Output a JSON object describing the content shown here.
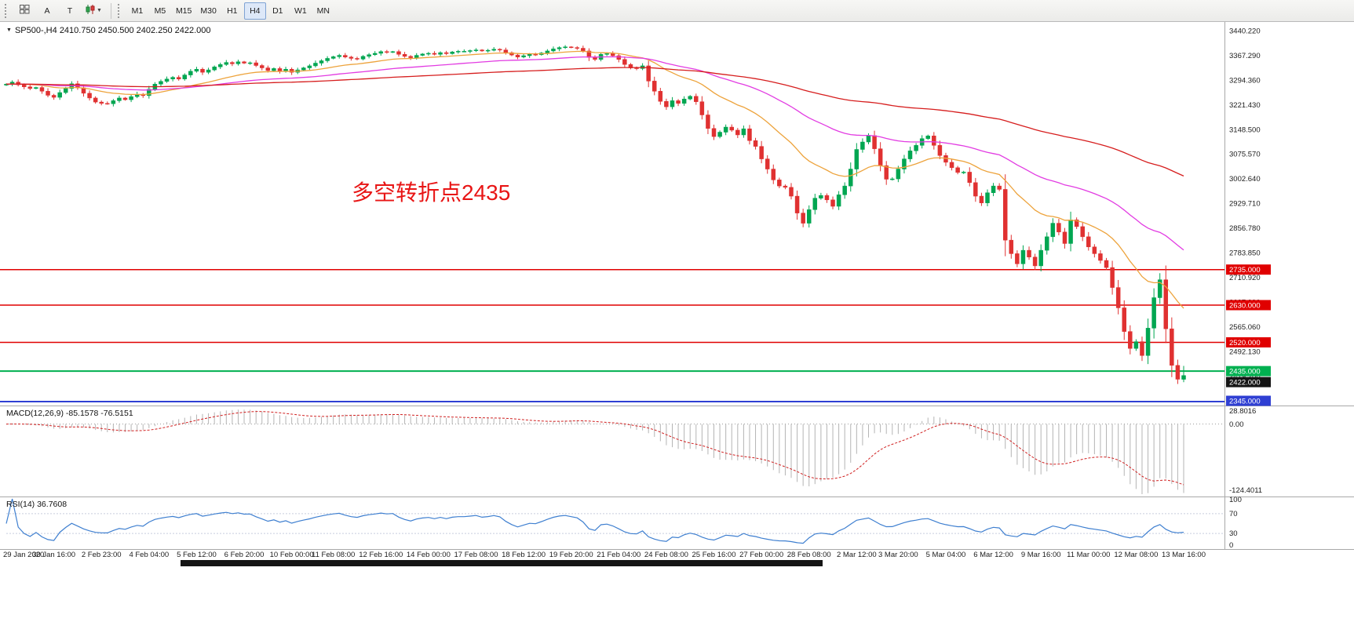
{
  "toolbar": {
    "left_buttons": [
      {
        "name": "chart-windows",
        "label": ""
      },
      {
        "name": "arrow-tool",
        "label": "A"
      },
      {
        "name": "text-tool",
        "label": "T"
      },
      {
        "name": "indicators",
        "label": ""
      }
    ],
    "timeframes": [
      {
        "label": "M1",
        "active": false
      },
      {
        "label": "M5",
        "active": false
      },
      {
        "label": "M15",
        "active": false
      },
      {
        "label": "M30",
        "active": false
      },
      {
        "label": "H1",
        "active": false
      },
      {
        "label": "H4",
        "active": true
      },
      {
        "label": "D1",
        "active": false
      },
      {
        "label": "W1",
        "active": false
      },
      {
        "label": "MN",
        "active": false
      }
    ]
  },
  "chart": {
    "title_symbol": "SP500-,H4",
    "title_ohlc": "2410.750 2450.500 2402.250 2422.000",
    "annotation": {
      "text": "多空转折点2435",
      "color": "#e81515"
    }
  },
  "indicators": {
    "macd": {
      "label": "MACD(12,26,9) -85.1578 -76.5151",
      "axis_labels": [
        "28.8016",
        "0.00",
        "-124.4011"
      ]
    },
    "rsi": {
      "label": "RSI(14) 36.7608",
      "axis_labels": [
        "100",
        "70",
        "30",
        "0"
      ]
    }
  },
  "chart_data": {
    "type": "candlestick",
    "symbol": "SP500-",
    "timeframe": "H4",
    "title": "SP500-,H4",
    "ylim": [
      2338,
      3462
    ],
    "y_axis_labels": [
      "3440.220",
      "3367.290",
      "3294.360",
      "3221.430",
      "3148.500",
      "3075.570",
      "3002.640",
      "2929.710",
      "2856.780",
      "2783.850",
      "2710.920",
      "2637.990",
      "2565.060",
      "2492.130",
      "2419.200",
      "2346.270"
    ],
    "x_axis_labels": [
      "29 Jan 2020",
      "30 Jan 16:00",
      "2 Feb 23:00",
      "4 Feb 04:00",
      "5 Feb 12:00",
      "6 Feb 20:00",
      "10 Feb 00:00",
      "11 Feb 08:00",
      "12 Feb 16:00",
      "14 Feb 00:00",
      "17 Feb 08:00",
      "18 Feb 12:00",
      "19 Feb 20:00",
      "21 Feb 04:00",
      "24 Feb 08:00",
      "25 Feb 16:00",
      "27 Feb 00:00",
      "28 Feb 08:00",
      "2 Mar 12:00",
      "3 Mar 20:00",
      "5 Mar 04:00",
      "6 Mar 12:00",
      "9 Mar 16:00",
      "11 Mar 00:00",
      "12 Mar 08:00",
      "13 Mar 16:00"
    ],
    "open_first": 3280,
    "closes": [
      3283,
      3289,
      3281,
      3275,
      3270,
      3273,
      3262,
      3250,
      3244,
      3258,
      3270,
      3284,
      3272,
      3256,
      3242,
      3230,
      3226,
      3225,
      3234,
      3242,
      3237,
      3246,
      3253,
      3249,
      3268,
      3283,
      3291,
      3298,
      3303,
      3298,
      3310,
      3321,
      3327,
      3318,
      3325,
      3334,
      3341,
      3347,
      3343,
      3349,
      3345,
      3346,
      3338,
      3331,
      3323,
      3329,
      3321,
      3327,
      3318,
      3325,
      3331,
      3337,
      3345,
      3352,
      3359,
      3364,
      3368,
      3363,
      3359,
      3357,
      3365,
      3370,
      3374,
      3379,
      3377,
      3379,
      3371,
      3365,
      3361,
      3368,
      3372,
      3374,
      3371,
      3376,
      3373,
      3378,
      3380,
      3380,
      3382,
      3384,
      3381,
      3383,
      3386,
      3384,
      3376,
      3369,
      3363,
      3367,
      3371,
      3370,
      3375,
      3381,
      3387,
      3391,
      3393,
      3391,
      3389,
      3381,
      3362,
      3356,
      3371,
      3373,
      3367,
      3356,
      3341,
      3331,
      3329,
      3337,
      3292,
      3262,
      3232,
      3216,
      3234,
      3226,
      3239,
      3247,
      3231,
      3192,
      3152,
      3128,
      3141,
      3156,
      3147,
      3133,
      3151,
      3116,
      3099,
      3062,
      3032,
      3000,
      2982,
      2978,
      2952,
      2902,
      2872,
      2912,
      2946,
      2954,
      2941,
      2922,
      2956,
      2982,
      3032,
      3090,
      3112,
      3131,
      3092,
      3042,
      3002,
      3003,
      3032,
      3062,
      3086,
      3102,
      3122,
      3130,
      3102,
      3072,
      3052,
      3036,
      3022,
      3023,
      2992,
      2952,
      2932,
      2962,
      2982,
      2972,
      2822,
      2782,
      2752,
      2792,
      2772,
      2746,
      2792,
      2832,
      2872,
      2846,
      2812,
      2882,
      2862,
      2832,
      2802,
      2782,
      2762,
      2741,
      2682,
      2622,
      2552,
      2502,
      2522,
      2481,
      2562,
      2652,
      2705,
      2560,
      2452,
      2411,
      2422
    ],
    "last_candle": {
      "open": 2410.75,
      "high": 2450.5,
      "low": 2402.25,
      "close": 2422.0
    },
    "up_color": "#00a651",
    "down_color": "#e03131",
    "moving_averages": [
      {
        "period": 21,
        "color": "#eda33c"
      },
      {
        "period": 55,
        "color": "#e23ce2"
      },
      {
        "period": 150,
        "color": "#d61d1d"
      }
    ],
    "levels": [
      {
        "text": "2735.000",
        "price": 2735.0,
        "bg": "#e00000",
        "fg": "#ffffff",
        "line_color": "#e00000",
        "line_width": 1.5
      },
      {
        "text": "2630.000",
        "price": 2630.0,
        "bg": "#e00000",
        "fg": "#ffffff",
        "line_color": "#e00000",
        "line_width": 1.5
      },
      {
        "text": "2520.000",
        "price": 2520.0,
        "bg": "#e00000",
        "fg": "#ffffff",
        "line_color": "#e00000",
        "line_width": 1.5
      },
      {
        "text": "2435.000",
        "price": 2435.0,
        "bg": "#00b050",
        "fg": "#ffffff",
        "line_color": "#00b050",
        "line_width": 2
      },
      {
        "text": "2422.000",
        "price": 2422.0,
        "bg": "#141414",
        "fg": "#ffffff",
        "line_color": "none",
        "line_width": 0
      },
      {
        "text": "2345.000",
        "price": 2345.0,
        "bg": "#2f3fd3",
        "fg": "#ffffff",
        "line_color": "#2f3fd3",
        "line_width": 2
      }
    ],
    "macd": {
      "fast": 12,
      "slow": 26,
      "signal": 9,
      "main_current": -85.1578,
      "signal_current": -76.5151,
      "axis_max": 28.8016,
      "axis_min": -124.4011,
      "histogram_color": "#b4b4b4",
      "signal_color": "#d02020"
    },
    "rsi": {
      "period": 14,
      "current": 36.7608,
      "line_color": "#3e7fd0",
      "levels": [
        70,
        30
      ]
    }
  }
}
